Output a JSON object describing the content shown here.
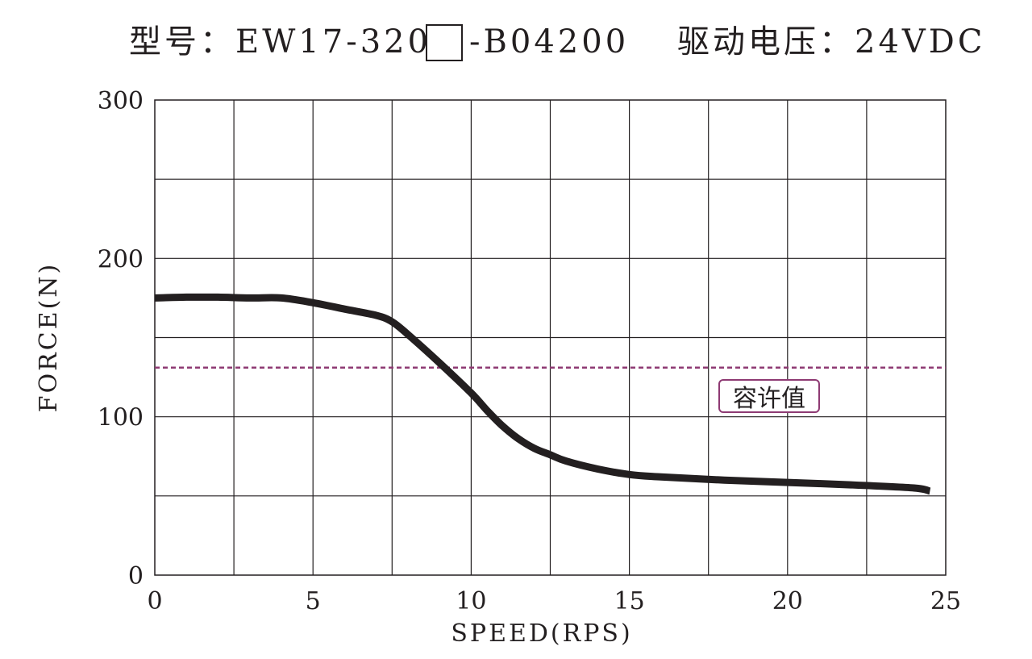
{
  "header": {
    "model_prefix": "型号：EW17-320",
    "model_suffix": "-B04200",
    "voltage": "驱动电压：24VDC"
  },
  "colors": {
    "curve": "#231f20",
    "grid": "#231f20",
    "limit_line": "#8e3a73"
  },
  "chart_data": {
    "type": "line",
    "xlabel": "SPEED(RPS)",
    "ylabel": "FORCE(N)",
    "xlim": [
      0,
      25
    ],
    "ylim": [
      0,
      300
    ],
    "x_ticks": [
      0,
      5,
      10,
      15,
      20,
      25
    ],
    "y_ticks": [
      0,
      100,
      200,
      300
    ],
    "grid": true,
    "x_grid_step": 2.5,
    "y_grid_step": 50,
    "series": [
      {
        "x": [
          0,
          1,
          2,
          3,
          4,
          5,
          6,
          7,
          7.5,
          8,
          9,
          10,
          10.5,
          11,
          11.5,
          12,
          12.5,
          13,
          14,
          15,
          16,
          18,
          20,
          22,
          24,
          24.5
        ],
        "y": [
          175,
          175.5,
          175.5,
          175,
          175,
          172,
          168,
          164,
          160,
          152,
          134,
          115,
          104,
          94,
          86,
          80,
          76,
          72,
          67,
          63.5,
          62,
          60,
          58.5,
          57,
          55,
          53
        ]
      }
    ],
    "reference_line": {
      "y": 131,
      "label": "容许值"
    }
  }
}
